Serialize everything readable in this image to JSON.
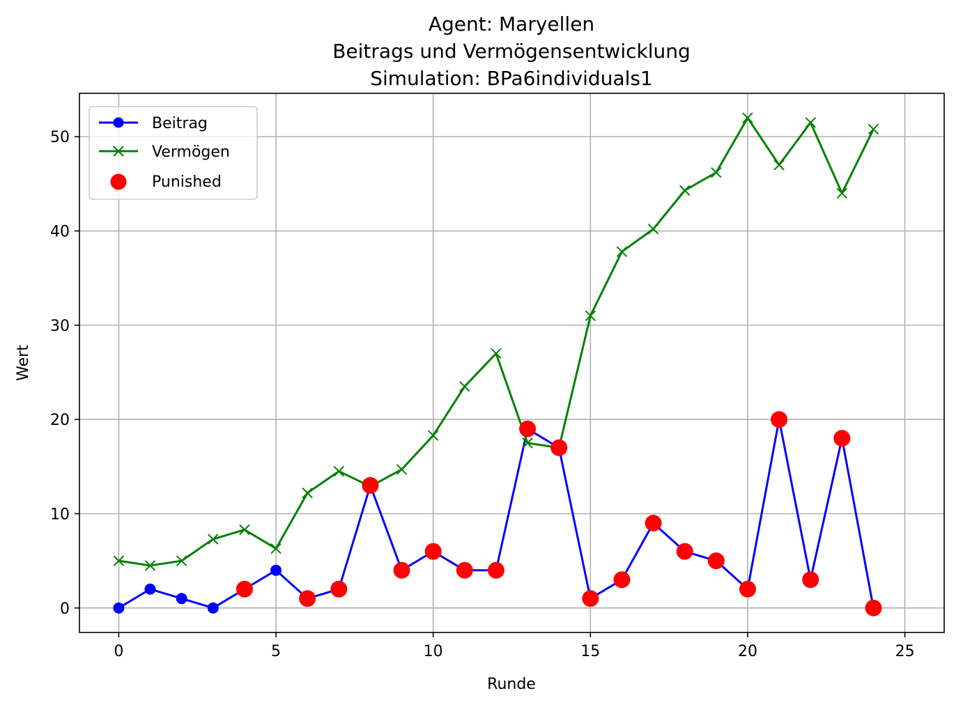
{
  "chart_data": {
    "type": "line",
    "title_lines": [
      "Agent: Maryellen",
      "Beitrags und Vermögensentwicklung",
      "Simulation: BPa6individuals1"
    ],
    "xlabel": "Runde",
    "ylabel": "Wert",
    "xlim": [
      -1.25,
      26.25
    ],
    "ylim": [
      -2.6,
      54.6
    ],
    "xticks": [
      0,
      5,
      10,
      15,
      20,
      25
    ],
    "yticks": [
      0,
      10,
      20,
      30,
      40,
      50
    ],
    "grid": true,
    "legend_position": "upper-left",
    "x": [
      0,
      1,
      2,
      3,
      4,
      5,
      6,
      7,
      8,
      9,
      10,
      11,
      12,
      13,
      14,
      15,
      16,
      17,
      18,
      19,
      20,
      21,
      22,
      23,
      24
    ],
    "series": [
      {
        "name": "Beitrag",
        "color": "#0000ff",
        "marker": "circle",
        "values": [
          0,
          2,
          1,
          0,
          2,
          4,
          1,
          2,
          13,
          4,
          6,
          4,
          4,
          19,
          17,
          1,
          3,
          9,
          6,
          5,
          2,
          20,
          3,
          18,
          0
        ]
      },
      {
        "name": "Vermögen",
        "color": "#008000",
        "marker": "x",
        "values": [
          5,
          4.5,
          5,
          7.3,
          8.3,
          6.3,
          12.2,
          14.5,
          12.9,
          14.7,
          18.3,
          23.5,
          27,
          17.5,
          17,
          31,
          37.8,
          40.2,
          44.3,
          46.2,
          52,
          47,
          51.5,
          44,
          50.8
        ]
      }
    ],
    "punished": {
      "name": "Punished",
      "color": "#ff0000",
      "marker": "big-circle",
      "points": [
        [
          4,
          2
        ],
        [
          6,
          1
        ],
        [
          7,
          2
        ],
        [
          8,
          13
        ],
        [
          9,
          4
        ],
        [
          10,
          6
        ],
        [
          11,
          4
        ],
        [
          12,
          4
        ],
        [
          13,
          19
        ],
        [
          14,
          17
        ],
        [
          15,
          1
        ],
        [
          16,
          3
        ],
        [
          17,
          9
        ],
        [
          18,
          6
        ],
        [
          19,
          5
        ],
        [
          20,
          2
        ],
        [
          21,
          20
        ],
        [
          22,
          3
        ],
        [
          23,
          18
        ],
        [
          24,
          0
        ]
      ]
    }
  }
}
